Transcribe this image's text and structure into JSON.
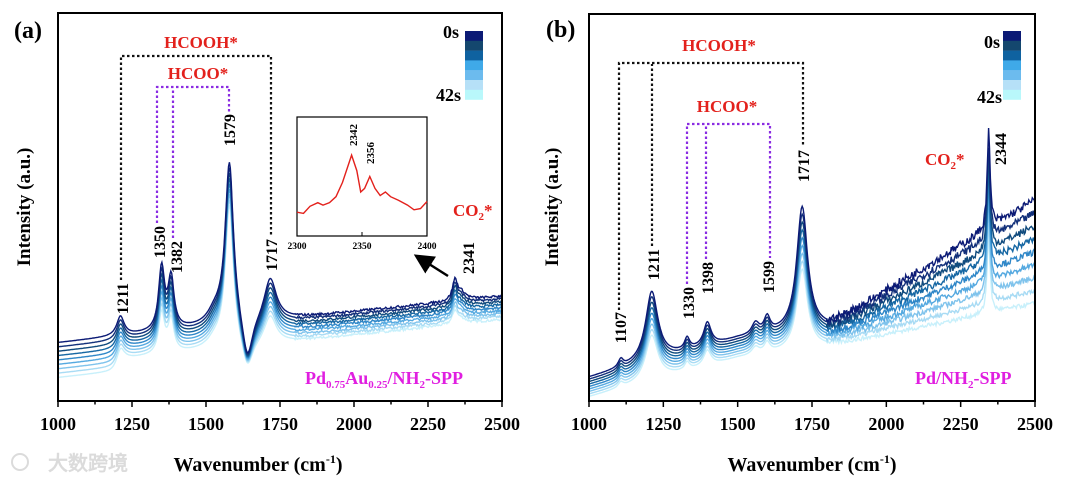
{
  "chart_data": [
    {
      "type": "line",
      "panel_label": "(a)",
      "xlabel": "Wavenumber (cm",
      "xlabel_sup": "-1",
      "xlabel_end": ")",
      "ylabel": "Intensity (a.u.)",
      "xlim": [
        1000,
        2500
      ],
      "xticks": [
        "1000",
        "1250",
        "1500",
        "1750",
        "2000",
        "2250",
        "2500"
      ],
      "legend": {
        "start": "0s",
        "end": "42s",
        "position": "top-right"
      },
      "sample": "Pd",
      "sample_sub1": "0.75",
      "sample_mid": "Au",
      "sample_sub2": "0.25",
      "sample_tail": "/NH",
      "sample_sub3": "2",
      "sample_end": "-SPP",
      "groups": {
        "hcooh": "HCOOH*",
        "hcoo": "HCOO*",
        "co2": "CO",
        "co2_sub": "2",
        "co2_star": "*"
      },
      "peak_labels": [
        "1211",
        "1350",
        "1382",
        "1579",
        "1717",
        "2341"
      ],
      "peaks": [
        {
          "center": 1211,
          "height": 0.05,
          "width": 15
        },
        {
          "center": 1350,
          "height": 0.16,
          "width": 12
        },
        {
          "center": 1382,
          "height": 0.13,
          "width": 12
        },
        {
          "center": 1530,
          "height": 0.03,
          "width": 30
        },
        {
          "center": 1579,
          "height": 0.42,
          "width": 17
        },
        {
          "center": 1640,
          "height": -0.12,
          "width": 22
        },
        {
          "center": 1717,
          "height": 0.11,
          "width": 25
        },
        {
          "center": 2341,
          "height": 0.05,
          "width": 10
        },
        {
          "center": 2362,
          "height": 0.02,
          "width": 20
        }
      ],
      "n_series": 9,
      "inset": {
        "xlim": [
          2300,
          2400
        ],
        "xticks": [
          "2300",
          "2350",
          "2400"
        ],
        "peak_labels": [
          "2342",
          "2356"
        ],
        "x": [
          2300,
          2305,
          2310,
          2316,
          2320,
          2325,
          2330,
          2335,
          2342,
          2346,
          2349,
          2352,
          2356,
          2360,
          2364,
          2368,
          2372,
          2378,
          2385,
          2390,
          2395,
          2400
        ],
        "y": [
          0.2,
          0.19,
          0.25,
          0.28,
          0.26,
          0.28,
          0.33,
          0.45,
          0.68,
          0.55,
          0.37,
          0.4,
          0.5,
          0.4,
          0.34,
          0.37,
          0.33,
          0.3,
          0.26,
          0.22,
          0.23,
          0.29
        ]
      }
    },
    {
      "type": "line",
      "panel_label": "(b)",
      "xlabel": "Wavenumber (cm",
      "xlabel_sup": "-1",
      "xlabel_end": ")",
      "ylabel": "Intensity (a.u.)",
      "xlim": [
        1000,
        2500
      ],
      "xticks": [
        "1000",
        "1250",
        "1500",
        "1750",
        "2000",
        "2250",
        "2500"
      ],
      "legend": {
        "start": "0s",
        "end": "42s",
        "position": "top-right"
      },
      "sample": "Pd/NH",
      "sample_sub": "2",
      "sample_end": "-SPP",
      "groups": {
        "hcooh": "HCOOH*",
        "hcoo": "HCOO*",
        "co2": "CO",
        "co2_sub": "2",
        "co2_star": "*"
      },
      "peak_labels": [
        "1107",
        "1211",
        "1330",
        "1398",
        "1599",
        "1717",
        "2344"
      ],
      "peaks": [
        {
          "center": 1107,
          "height": 0.02,
          "width": 10
        },
        {
          "center": 1211,
          "height": 0.18,
          "width": 25
        },
        {
          "center": 1330,
          "height": 0.03,
          "width": 10
        },
        {
          "center": 1398,
          "height": 0.06,
          "width": 15
        },
        {
          "center": 1560,
          "height": 0.03,
          "width": 15
        },
        {
          "center": 1599,
          "height": 0.04,
          "width": 12
        },
        {
          "center": 1717,
          "height": 0.32,
          "width": 22
        },
        {
          "center": 2344,
          "height": 0.25,
          "width": 6
        }
      ],
      "n_series": 9
    }
  ],
  "colors": [
    "#0b1a75",
    "#12307a",
    "#104b7e",
    "#1667a3",
    "#2f87c8",
    "#55a9e0",
    "#7fc3ec",
    "#a8dbf4",
    "#c8f0fb"
  ],
  "colorbar": [
    "#0b1a75",
    "#14476e",
    "#0f62a0",
    "#3fa9e8",
    "#6cbbee",
    "#b6e0f7",
    "#b9f8fb"
  ],
  "watermark": "大数跨境"
}
